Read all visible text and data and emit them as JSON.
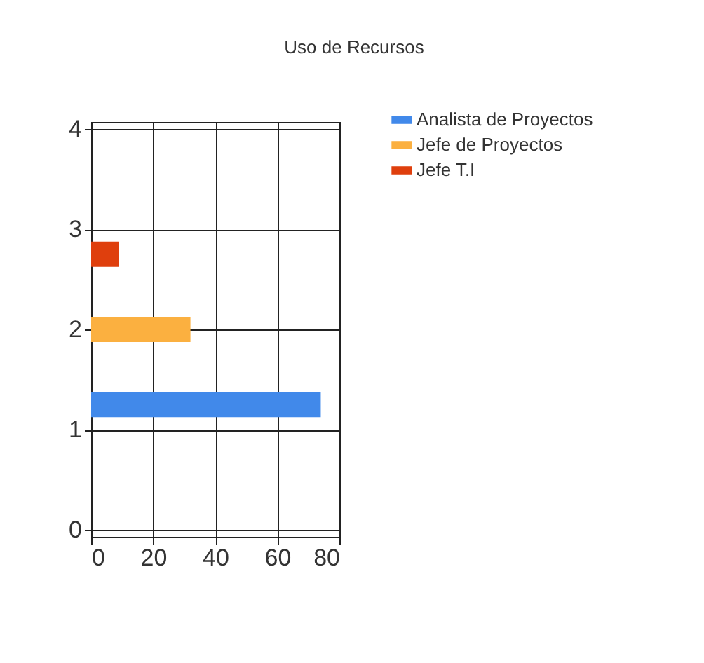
{
  "chart_data": {
    "type": "bar",
    "title": "Uso de Recursos",
    "orientation": "horizontal",
    "series": [
      {
        "name": "Analista de Proyectos",
        "color": "#4189ea",
        "x": [
          1.25
        ],
        "values": [
          74
        ]
      },
      {
        "name": "Jefe de Proyectos",
        "color": "#fbb040",
        "x": [
          2
        ],
        "values": [
          32
        ]
      },
      {
        "name": "Jefe T.I",
        "color": "#df3f0d",
        "x": [
          2.75
        ],
        "values": [
          9
        ]
      }
    ],
    "xlim": [
      0,
      80
    ],
    "xticks": [
      0,
      20,
      40,
      60,
      80
    ],
    "ylim": [
      0,
      4
    ],
    "yticks": [
      0,
      1,
      2,
      3,
      4
    ],
    "grid": true,
    "legend": "top right"
  }
}
